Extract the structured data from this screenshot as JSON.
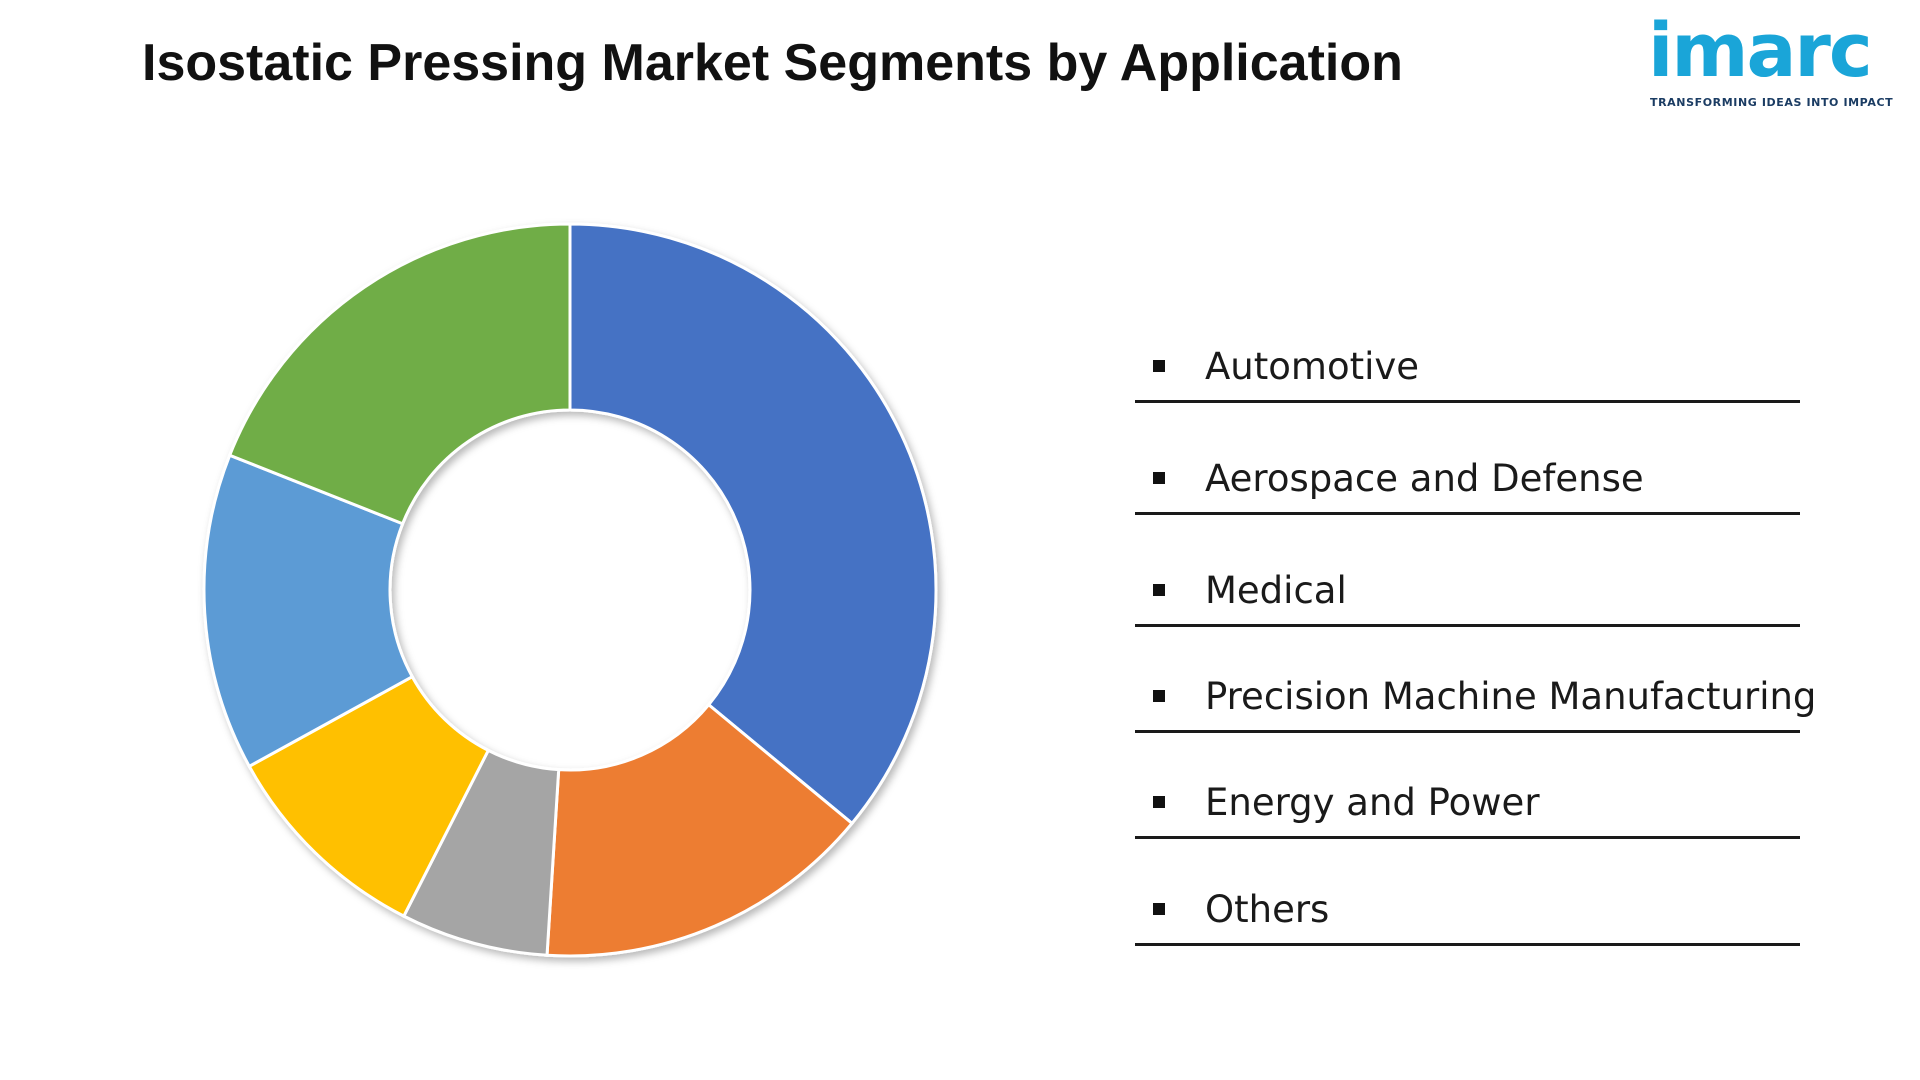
{
  "header": {
    "title": "Isostatic Pressing Market Segments by Application"
  },
  "logo": {
    "wordmark": "imarc",
    "tagline": "TRANSFORMING IDEAS INTO IMPACT",
    "color": "#1aa5d8",
    "tagline_color": "#1b3c63"
  },
  "chart_data": {
    "type": "pie",
    "variant": "donut",
    "title": "Isostatic Pressing Market Segments by Application",
    "legend_position": "right",
    "start_angle_deg": 0,
    "direction": "clockwise",
    "series": [
      {
        "name": "",
        "values": [
          36,
          15,
          6.5,
          9.5,
          14,
          19
        ]
      }
    ],
    "categories": [
      "Automotive",
      "Aerospace and Defense",
      "Medical",
      "Precision Machine Manufacturing",
      "Energy and Power",
      "Others"
    ],
    "colors": [
      "#4472c4",
      "#ed7d31",
      "#a5a5a5",
      "#ffc000",
      "#5b9bd5",
      "#70ad47"
    ]
  },
  "legend": {
    "items": [
      {
        "label": "Automotive"
      },
      {
        "label": "Aerospace and Defense"
      },
      {
        "label": "Medical"
      },
      {
        "label": "Precision Machine Manufacturing"
      },
      {
        "label": "Energy and Power"
      },
      {
        "label": "Others"
      }
    ]
  }
}
